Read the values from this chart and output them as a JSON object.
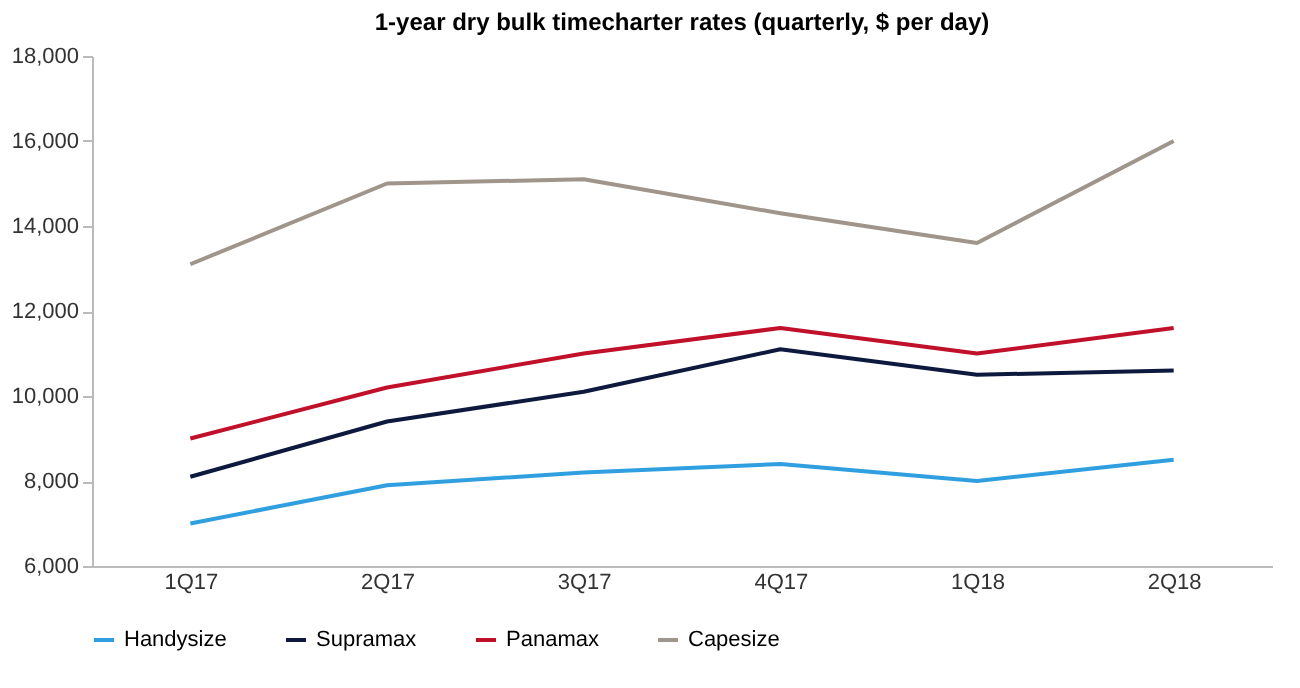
{
  "chart_data": {
    "type": "line",
    "title": "1-year dry bulk timecharter rates (quarterly, $ per day)",
    "categories": [
      "1Q17",
      "2Q17",
      "3Q17",
      "4Q17",
      "1Q18",
      "2Q18"
    ],
    "series": [
      {
        "name": "Handysize",
        "color": "#2f9fe0",
        "values": [
          7000,
          7900,
          8200,
          8400,
          8000,
          8500
        ]
      },
      {
        "name": "Supramax",
        "color": "#0d1a3e",
        "values": [
          8100,
          9400,
          10100,
          11100,
          10500,
          10600
        ]
      },
      {
        "name": "Panamax",
        "color": "#c0102a",
        "values": [
          9000,
          10200,
          11000,
          11600,
          11000,
          11600
        ]
      },
      {
        "name": "Capesize",
        "color": "#a0958a",
        "values": [
          13100,
          15000,
          15100,
          14300,
          13600,
          16000
        ]
      }
    ],
    "ylim": [
      6000,
      18000
    ],
    "yticks": [
      {
        "value": 6000,
        "label": "6,000"
      },
      {
        "value": 8000,
        "label": "8,000"
      },
      {
        "value": 10000,
        "label": "10,000"
      },
      {
        "value": 12000,
        "label": "12,000"
      },
      {
        "value": 14000,
        "label": "14,000"
      },
      {
        "value": 16000,
        "label": "16,000"
      },
      {
        "value": 18000,
        "label": "18,000"
      }
    ],
    "grid": false,
    "legend": "bottom",
    "marker": "none",
    "line_style": "solid"
  }
}
